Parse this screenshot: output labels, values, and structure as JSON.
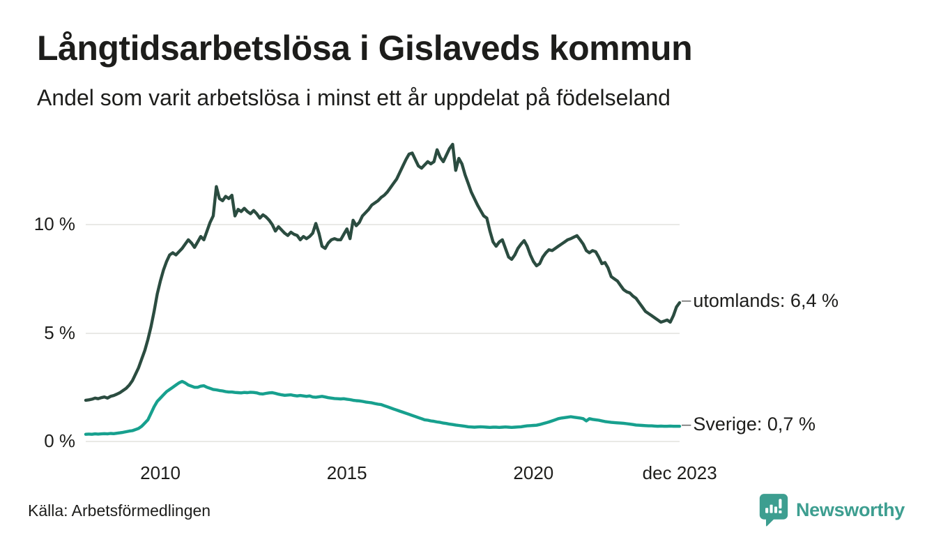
{
  "header": {
    "title": "Långtidsarbetslösa i Gislaveds kommun",
    "subtitle": "Andel som varit arbetslösa i minst ett år uppdelat på födelseland"
  },
  "footer": {
    "source": "Källa: Arbetsförmedlingen",
    "brand": "Newsworthy"
  },
  "ui": {
    "label_dash": "–"
  },
  "colors": {
    "utomlands_line": "#2b4c40",
    "sverige_line": "#17a08e",
    "grid": "#e9e9e6",
    "text": "#1d1d1b",
    "brand_teal": "#3d9e90"
  },
  "chart_data": {
    "type": "line",
    "title": "Långtidsarbetslösa i Gislaveds kommun",
    "subtitle": "Andel som varit arbetslösa i minst ett år uppdelat på födelseland",
    "x_unit": "month",
    "x_start": "2008-01",
    "x_end": "2023-12",
    "ylim": [
      0,
      14
    ],
    "grid": "horizontal",
    "legend_position": "end-of-line-labels",
    "y_ticks": [
      {
        "value": 0,
        "label": "0 %"
      },
      {
        "value": 5,
        "label": "5 %"
      },
      {
        "value": 10,
        "label": "10 %"
      }
    ],
    "x_ticks": [
      {
        "year": 2010.0,
        "label": "2010"
      },
      {
        "year": 2015.0,
        "label": "2015"
      },
      {
        "year": 2020.0,
        "label": "2020"
      },
      {
        "year": 2023.92,
        "label": "dec 2023"
      }
    ],
    "series": [
      {
        "name": "utomlands",
        "color": "#2b4c40",
        "end_label": "utomlands: 6,4 %",
        "end_value": 6.4,
        "values": [
          1.9,
          1.92,
          1.95,
          2.0,
          1.97,
          2.02,
          2.05,
          2.0,
          2.08,
          2.12,
          2.18,
          2.25,
          2.35,
          2.45,
          2.6,
          2.8,
          3.1,
          3.4,
          3.8,
          4.2,
          4.7,
          5.3,
          6.0,
          6.8,
          7.4,
          7.9,
          8.3,
          8.6,
          8.7,
          8.6,
          8.75,
          8.9,
          9.1,
          9.3,
          9.15,
          8.95,
          9.2,
          9.45,
          9.3,
          9.7,
          10.1,
          10.4,
          11.75,
          11.2,
          11.1,
          11.3,
          11.2,
          11.35,
          10.4,
          10.7,
          10.6,
          10.75,
          10.6,
          10.5,
          10.65,
          10.5,
          10.3,
          10.45,
          10.35,
          10.2,
          10.0,
          9.7,
          9.9,
          9.75,
          9.6,
          9.5,
          9.65,
          9.55,
          9.5,
          9.3,
          9.45,
          9.35,
          9.45,
          9.6,
          10.05,
          9.6,
          9.0,
          8.9,
          9.15,
          9.3,
          9.35,
          9.3,
          9.3,
          9.55,
          9.8,
          9.35,
          10.2,
          9.95,
          10.1,
          10.4,
          10.55,
          10.7,
          10.9,
          11.0,
          11.1,
          11.25,
          11.35,
          11.5,
          11.7,
          11.9,
          12.1,
          12.4,
          12.7,
          13.0,
          13.25,
          13.3,
          13.0,
          12.7,
          12.6,
          12.75,
          12.9,
          12.8,
          12.9,
          13.45,
          13.1,
          12.9,
          13.2,
          13.5,
          13.7,
          12.5,
          13.05,
          12.8,
          12.3,
          11.9,
          11.5,
          11.2,
          10.9,
          10.65,
          10.4,
          10.3,
          9.7,
          9.2,
          9.0,
          9.2,
          9.3,
          8.9,
          8.5,
          8.4,
          8.6,
          8.9,
          9.1,
          9.26,
          9.0,
          8.6,
          8.3,
          8.1,
          8.2,
          8.5,
          8.7,
          8.84,
          8.8,
          8.9,
          9.0,
          9.1,
          9.2,
          9.3,
          9.35,
          9.42,
          9.49,
          9.3,
          9.1,
          8.8,
          8.7,
          8.8,
          8.75,
          8.5,
          8.2,
          8.25,
          8.0,
          7.6,
          7.5,
          7.4,
          7.2,
          7.0,
          6.9,
          6.85,
          6.7,
          6.6,
          6.4,
          6.2,
          6.0,
          5.9,
          5.8,
          5.7,
          5.6,
          5.5,
          5.55,
          5.6,
          5.5,
          5.8,
          6.2,
          6.4
        ]
      },
      {
        "name": "Sverige",
        "color": "#17a08e",
        "end_label": "Sverige: 0,7 %",
        "end_value": 0.7,
        "values": [
          0.33,
          0.34,
          0.33,
          0.35,
          0.34,
          0.35,
          0.36,
          0.35,
          0.37,
          0.36,
          0.38,
          0.4,
          0.42,
          0.45,
          0.48,
          0.5,
          0.55,
          0.6,
          0.7,
          0.85,
          1.0,
          1.3,
          1.6,
          1.85,
          2.0,
          2.15,
          2.3,
          2.4,
          2.5,
          2.6,
          2.7,
          2.77,
          2.7,
          2.6,
          2.55,
          2.5,
          2.5,
          2.55,
          2.57,
          2.5,
          2.45,
          2.4,
          2.38,
          2.35,
          2.33,
          2.3,
          2.28,
          2.28,
          2.26,
          2.25,
          2.24,
          2.26,
          2.25,
          2.27,
          2.26,
          2.24,
          2.2,
          2.19,
          2.22,
          2.24,
          2.25,
          2.22,
          2.18,
          2.15,
          2.13,
          2.14,
          2.15,
          2.12,
          2.1,
          2.12,
          2.1,
          2.08,
          2.1,
          2.05,
          2.04,
          2.06,
          2.08,
          2.05,
          2.02,
          2.0,
          1.98,
          1.97,
          1.96,
          1.97,
          1.95,
          1.93,
          1.9,
          1.88,
          1.87,
          1.85,
          1.82,
          1.8,
          1.78,
          1.75,
          1.72,
          1.7,
          1.65,
          1.6,
          1.55,
          1.5,
          1.45,
          1.4,
          1.35,
          1.3,
          1.25,
          1.2,
          1.15,
          1.1,
          1.05,
          1.0,
          0.98,
          0.95,
          0.93,
          0.9,
          0.88,
          0.85,
          0.83,
          0.8,
          0.78,
          0.76,
          0.74,
          0.72,
          0.7,
          0.68,
          0.67,
          0.66,
          0.67,
          0.68,
          0.67,
          0.66,
          0.65,
          0.66,
          0.66,
          0.65,
          0.66,
          0.67,
          0.66,
          0.65,
          0.66,
          0.67,
          0.68,
          0.7,
          0.72,
          0.73,
          0.74,
          0.75,
          0.78,
          0.82,
          0.86,
          0.9,
          0.95,
          1.0,
          1.05,
          1.08,
          1.1,
          1.12,
          1.14,
          1.12,
          1.1,
          1.08,
          1.05,
          0.95,
          1.05,
          1.02,
          1.0,
          0.98,
          0.95,
          0.92,
          0.9,
          0.88,
          0.87,
          0.86,
          0.85,
          0.84,
          0.82,
          0.8,
          0.78,
          0.76,
          0.75,
          0.74,
          0.73,
          0.72,
          0.72,
          0.71,
          0.7,
          0.71,
          0.7,
          0.7,
          0.71,
          0.7,
          0.7,
          0.7
        ]
      }
    ]
  }
}
